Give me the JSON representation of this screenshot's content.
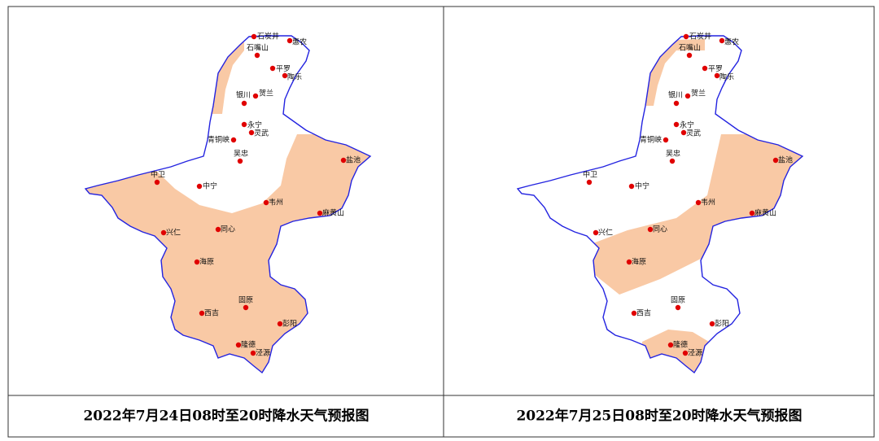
{
  "panels": [
    {
      "caption": "2022年7月24日08时至20时降水天气预报图"
    },
    {
      "caption": "2022年7月25日08时至20时降水天气预报图"
    }
  ],
  "cities": [
    {
      "name": "石炭井"
    },
    {
      "name": "惠农"
    },
    {
      "name": "石嘴山"
    },
    {
      "name": "平罗"
    },
    {
      "name": "陶乐"
    },
    {
      "name": "贺兰"
    },
    {
      "name": "银川"
    },
    {
      "name": "永宁"
    },
    {
      "name": "灵武"
    },
    {
      "name": "青铜峡"
    },
    {
      "name": "吴忠"
    },
    {
      "name": "盐池"
    },
    {
      "name": "中卫"
    },
    {
      "name": "中宁"
    },
    {
      "name": "韦州"
    },
    {
      "name": "麻黄山"
    },
    {
      "name": "同心"
    },
    {
      "name": "兴仁"
    },
    {
      "name": "海原"
    },
    {
      "name": "固原"
    },
    {
      "name": "西吉"
    },
    {
      "name": "彭阳"
    },
    {
      "name": "隆德"
    },
    {
      "name": "泾源"
    }
  ]
}
